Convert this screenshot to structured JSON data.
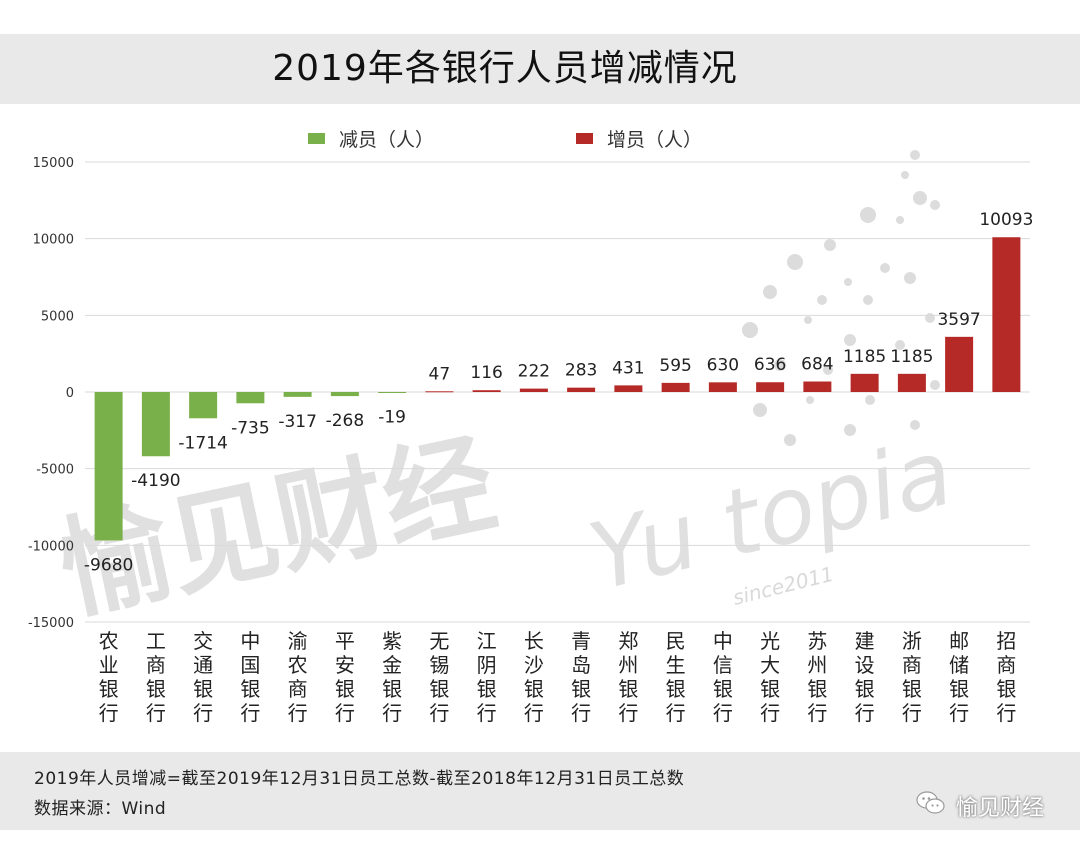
{
  "title": "2019年各银行人员增减情况",
  "legend": [
    {
      "label": "减员（人）",
      "color": "#7ab04a"
    },
    {
      "label": "增员（人）",
      "color": "#b52a26"
    }
  ],
  "watermark": {
    "chinese": "愉见财经",
    "latin": "Yu topia",
    "since": "since2011"
  },
  "footer": {
    "note": "2019年人员增减=截至2019年12月31日员工总数-截至2018年12月31日员工总数",
    "source": "数据来源：Wind"
  },
  "brand": "愉见财经",
  "chart_data": {
    "type": "bar",
    "categories": [
      "农业银行",
      "工商银行",
      "交通银行",
      "中国银行",
      "渝农商行",
      "平安银行",
      "紫金银行",
      "无锡银行",
      "江阴银行",
      "长沙银行",
      "青岛银行",
      "郑州银行",
      "民生银行",
      "中信银行",
      "光大银行",
      "苏州银行",
      "建设银行",
      "浙商银行",
      "邮储银行",
      "招商银行"
    ],
    "values": [
      -9680,
      -4190,
      -1714,
      -735,
      -317,
      -268,
      -19,
      47,
      116,
      222,
      283,
      431,
      595,
      630,
      636,
      684,
      1185,
      1185,
      3597,
      10093
    ],
    "value_labels": [
      "-9680",
      "-4190",
      "-1714",
      "-735",
      "-317",
      "-268",
      "-19",
      "47",
      "116",
      "222",
      "283",
      "431",
      "595",
      "630",
      "636",
      "684",
      "1185",
      "1185",
      "3597",
      "10093"
    ],
    "yticks": [
      "15000",
      "10000",
      "5000",
      "0",
      "-5000",
      "-10000",
      "-15000"
    ],
    "ylim": [
      -15000,
      15000
    ],
    "grid": true,
    "legend_position": "top",
    "colors": {
      "negative": "#7ab04a",
      "positive": "#b52a26"
    }
  }
}
